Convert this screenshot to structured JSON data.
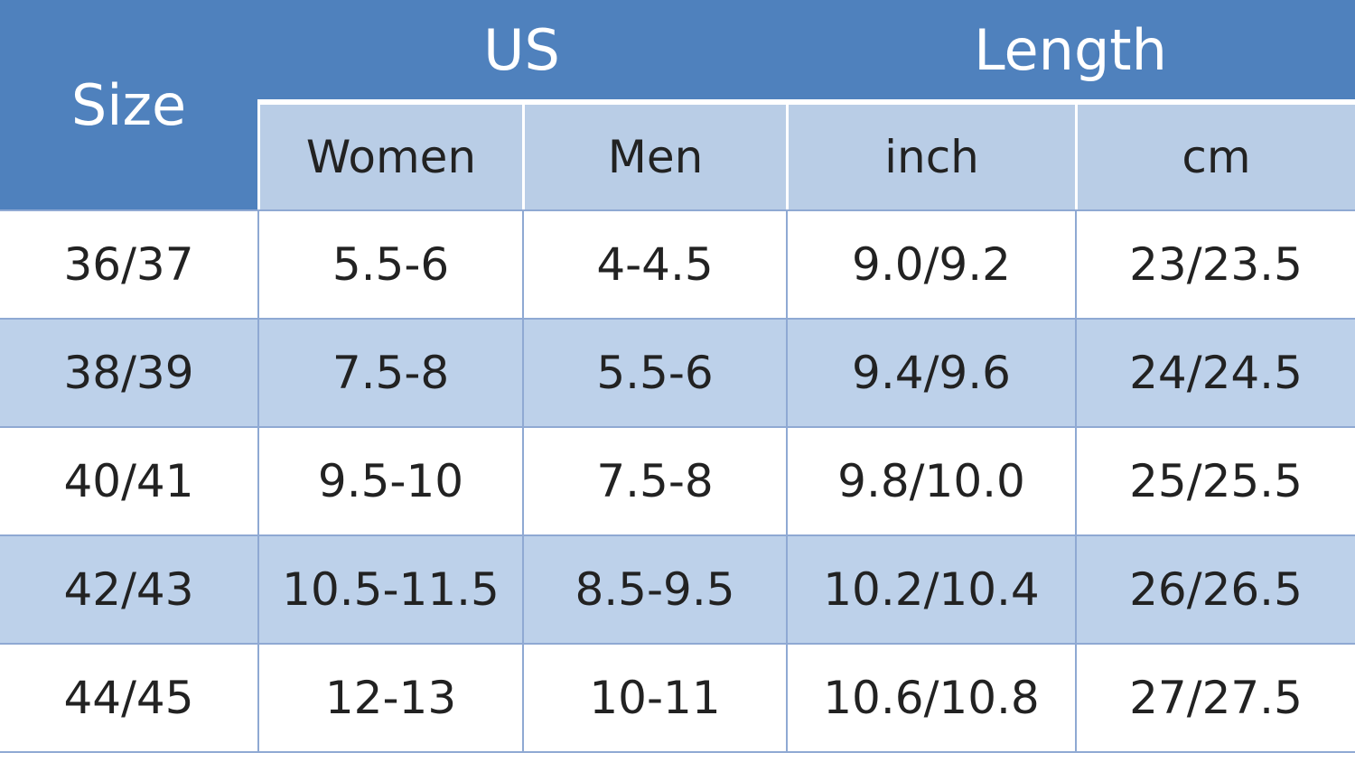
{
  "table": {
    "header": {
      "size": "Size",
      "us": "US",
      "length": "Length",
      "subheaders": [
        "Women",
        "Men",
        "inch",
        "cm"
      ]
    },
    "rows": [
      [
        "36/37",
        "5.5-6",
        "4-4.5",
        "9.0/9.2",
        "23/23.5"
      ],
      [
        "38/39",
        "7.5-8",
        "5.5-6",
        "9.4/9.6",
        "24/24.5"
      ],
      [
        "40/41",
        "9.5-10",
        "7.5-8",
        "9.8/10.0",
        "25/25.5"
      ],
      [
        "42/43",
        "10.5-11.5",
        "8.5-9.5",
        "10.2/10.4",
        "26/26.5"
      ],
      [
        "44/45",
        "12-13",
        "10-11",
        "10.6/10.8",
        "27/27.5"
      ]
    ]
  }
}
